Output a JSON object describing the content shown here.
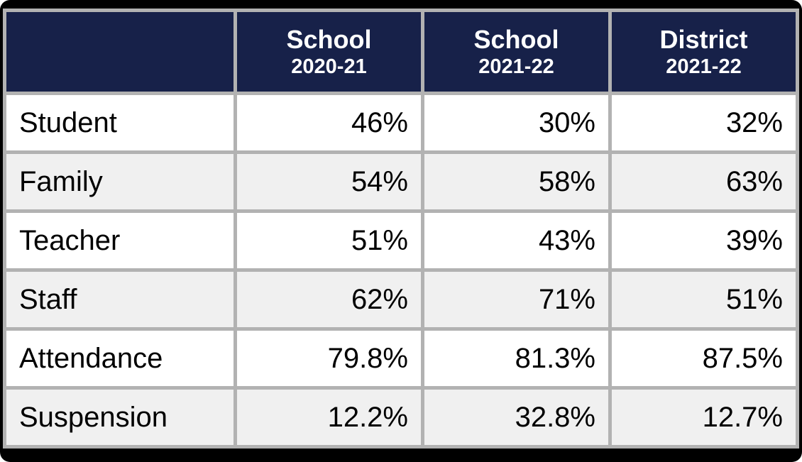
{
  "chart_data": {
    "type": "table",
    "columns": [
      {
        "title": "",
        "subtitle": ""
      },
      {
        "title": "School",
        "subtitle": "2020-21"
      },
      {
        "title": "School",
        "subtitle": "2021-22"
      },
      {
        "title": "District",
        "subtitle": "2021-22"
      }
    ],
    "rows": [
      {
        "label": "Student",
        "values": [
          "46%",
          "30%",
          "32%"
        ]
      },
      {
        "label": "Family",
        "values": [
          "54%",
          "58%",
          "63%"
        ]
      },
      {
        "label": "Teacher",
        "values": [
          "51%",
          "43%",
          "39%"
        ]
      },
      {
        "label": "Staff",
        "values": [
          "62%",
          "71%",
          "51%"
        ]
      },
      {
        "label": "Attendance",
        "values": [
          "79.8%",
          "81.3%",
          "87.5%"
        ]
      },
      {
        "label": "Suspension",
        "values": [
          "12.2%",
          "32.8%",
          "12.7%"
        ]
      }
    ]
  },
  "colors": {
    "header_background": "#172149",
    "header_text": "#ffffff",
    "grid_border": "#b2b2b2",
    "row_even_background": "#ffffff",
    "row_odd_background": "#f0f0f0",
    "frame_background": "#000000",
    "body_text": "#000000"
  }
}
